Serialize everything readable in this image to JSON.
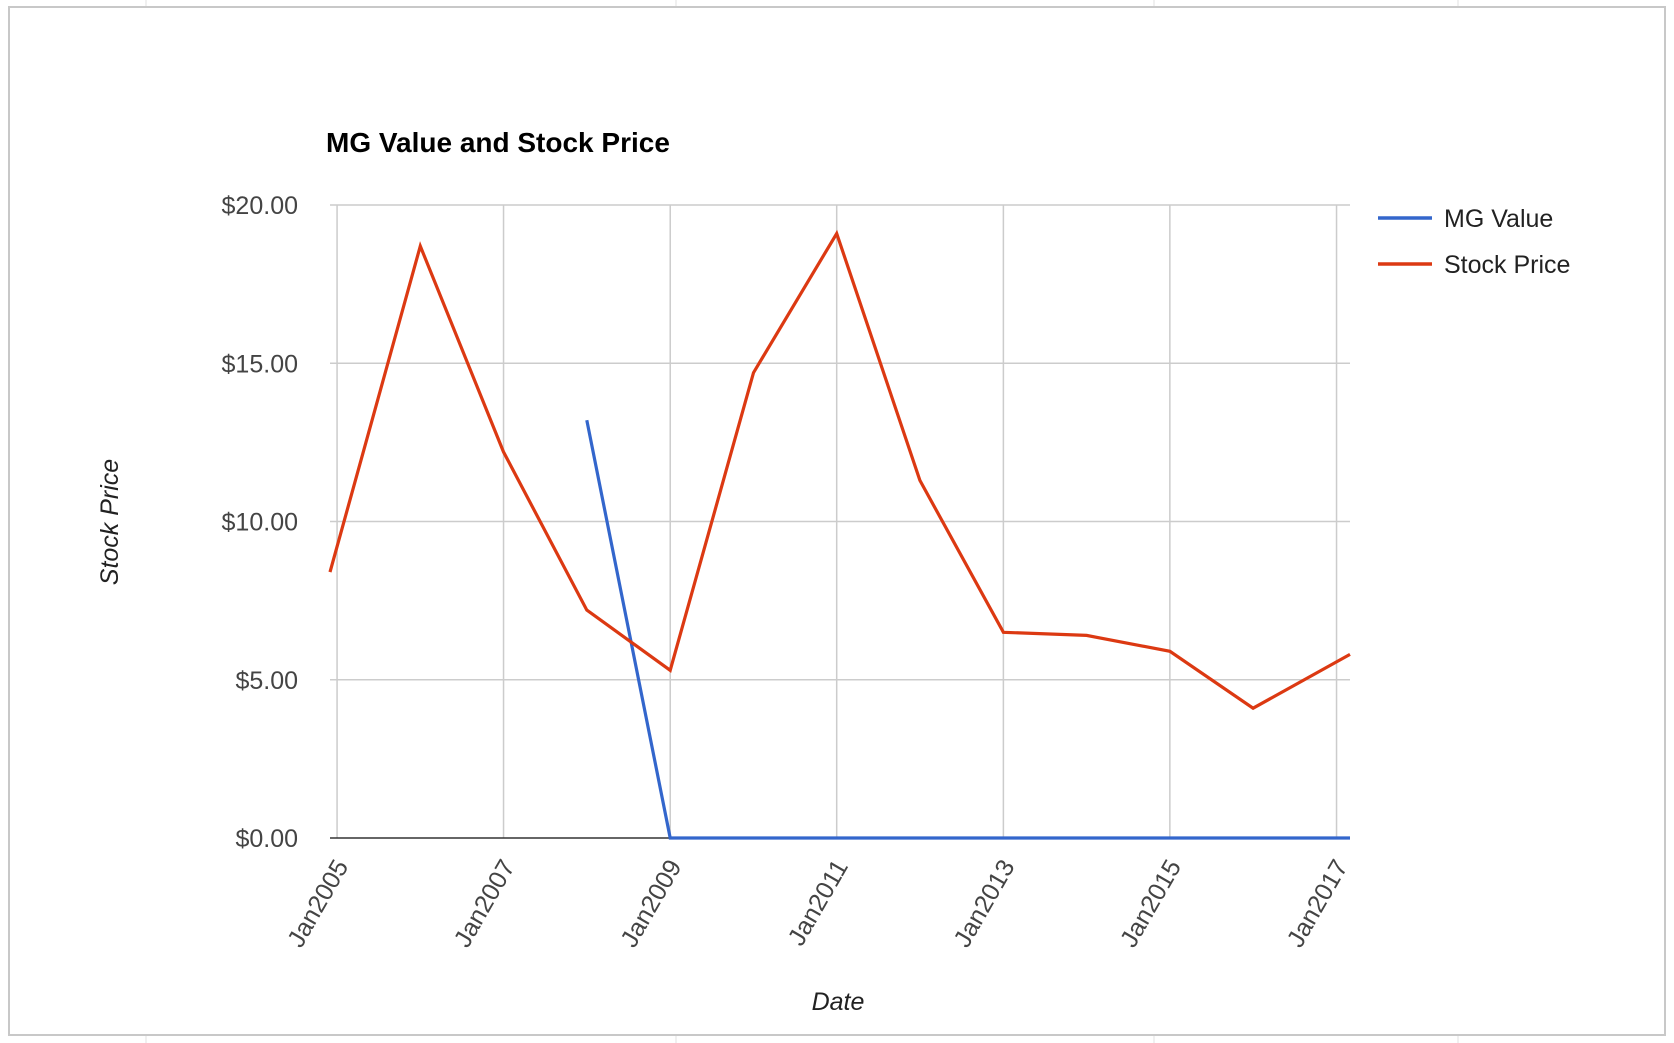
{
  "chart_data": {
    "type": "line",
    "title": "MG Value and Stock Price",
    "xlabel": "Date",
    "ylabel": "Stock Price",
    "x_tick_labels": [
      "Jan2005",
      "Jan2007",
      "Jan2009",
      "Jan2011",
      "Jan2013",
      "Jan2015",
      "Jan2017"
    ],
    "x_tick_dates": [
      "2005-01-01",
      "2007-01-01",
      "2009-01-01",
      "2011-01-01",
      "2013-01-01",
      "2015-01-01",
      "2017-01-01"
    ],
    "x_range": [
      "2004-12-01",
      "2017-03-01"
    ],
    "y_tick_labels": [
      "$0.00",
      "$5.00",
      "$10.00",
      "$15.00",
      "$20.00"
    ],
    "y_tick_values": [
      0,
      5,
      10,
      15,
      20
    ],
    "ylim": [
      0,
      20
    ],
    "grid": true,
    "legend_position": "right",
    "series": [
      {
        "name": "MG Value",
        "color": "#3366cc",
        "points": [
          {
            "x": "2008-01-01",
            "y": 13.2
          },
          {
            "x": "2009-01-01",
            "y": 0
          },
          {
            "x": "2010-01-01",
            "y": 0
          },
          {
            "x": "2011-01-01",
            "y": 0
          },
          {
            "x": "2012-01-01",
            "y": 0
          },
          {
            "x": "2013-01-01",
            "y": 0
          },
          {
            "x": "2014-01-01",
            "y": 0
          },
          {
            "x": "2015-01-01",
            "y": 0
          },
          {
            "x": "2016-01-01",
            "y": 0
          },
          {
            "x": "2017-03-01",
            "y": 0
          }
        ]
      },
      {
        "name": "Stock Price",
        "color": "#dc3912",
        "points": [
          {
            "x": "2004-12-01",
            "y": 8.4
          },
          {
            "x": "2006-01-01",
            "y": 18.7
          },
          {
            "x": "2007-01-01",
            "y": 12.2
          },
          {
            "x": "2008-01-01",
            "y": 7.2
          },
          {
            "x": "2009-01-01",
            "y": 5.3
          },
          {
            "x": "2010-01-01",
            "y": 14.7
          },
          {
            "x": "2011-01-01",
            "y": 19.1
          },
          {
            "x": "2012-01-01",
            "y": 11.3
          },
          {
            "x": "2013-01-01",
            "y": 6.5
          },
          {
            "x": "2014-01-01",
            "y": 6.4
          },
          {
            "x": "2015-01-01",
            "y": 5.9
          },
          {
            "x": "2016-01-01",
            "y": 4.1
          },
          {
            "x": "2017-03-01",
            "y": 5.8
          }
        ]
      }
    ]
  }
}
